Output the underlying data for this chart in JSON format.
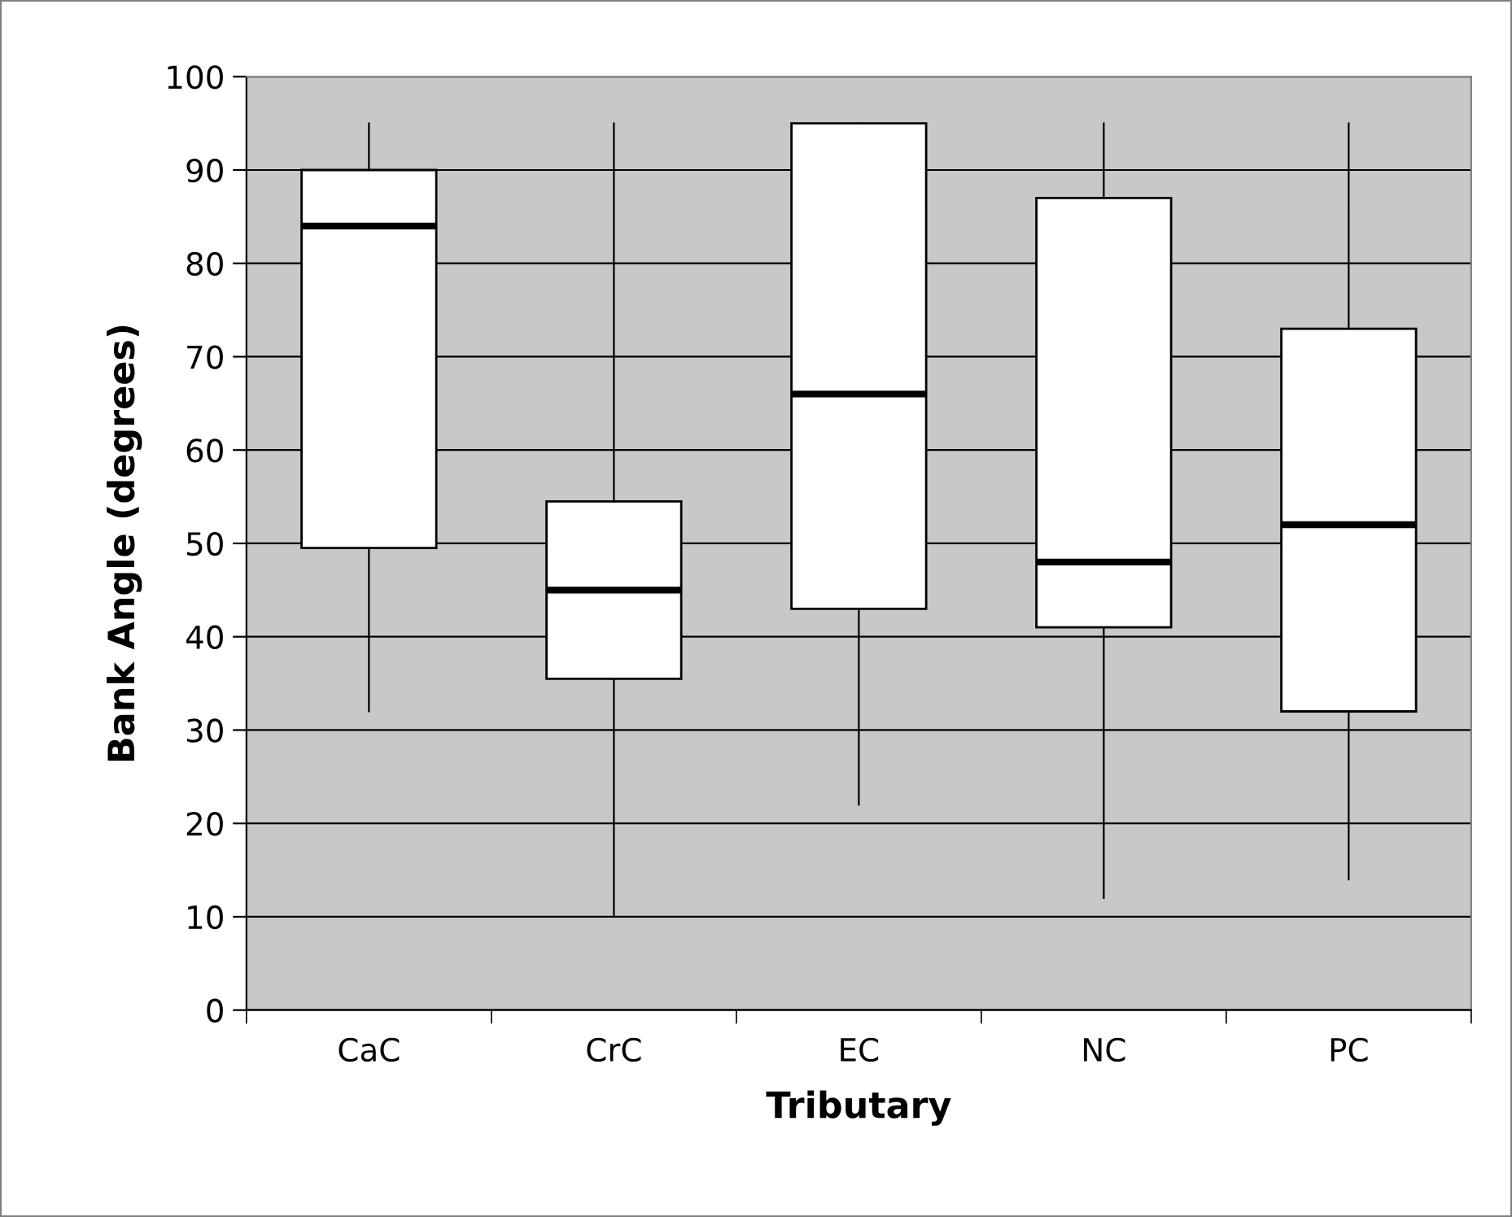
{
  "chart_data": {
    "type": "box",
    "xlabel": "Tributary",
    "ylabel": "Bank Angle (degrees)",
    "categories": [
      "CaC",
      "CrC",
      "EC",
      "NC",
      "PC"
    ],
    "boxes": [
      {
        "low": 32,
        "q1": 49.5,
        "median": 84,
        "q3": 90,
        "high": 95
      },
      {
        "low": 10,
        "q1": 35.5,
        "median": 45,
        "q3": 54.5,
        "high": 95
      },
      {
        "low": 22,
        "q1": 43,
        "median": 66,
        "q3": 95,
        "high": 95
      },
      {
        "low": 12,
        "q1": 41,
        "median": 48,
        "q3": 87,
        "high": 95
      },
      {
        "low": 14,
        "q1": 32,
        "median": 52,
        "q3": 73,
        "high": 95
      }
    ],
    "ylim": [
      0,
      100
    ],
    "yticks": [
      0,
      10,
      20,
      30,
      40,
      50,
      60,
      70,
      80,
      90,
      100
    ],
    "grid": "y",
    "legend": false
  }
}
